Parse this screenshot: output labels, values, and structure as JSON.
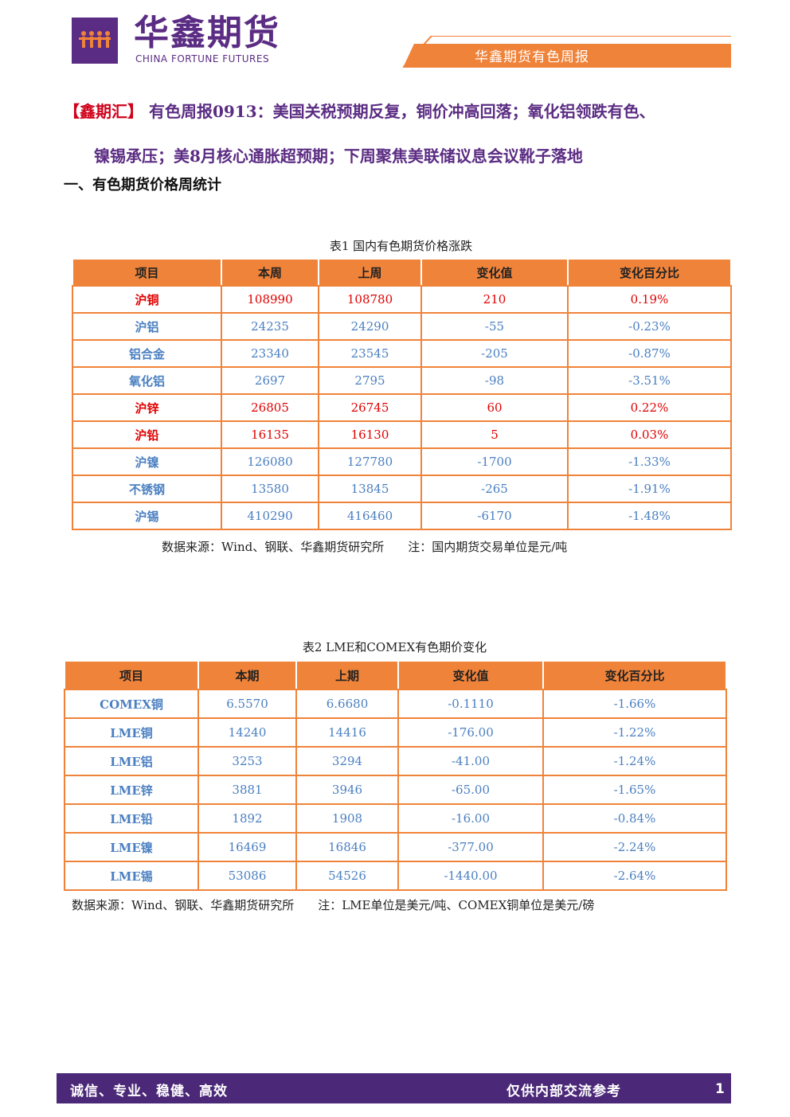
{
  "header": {
    "brand": "华鑫期货",
    "brand_en": "CHINA FORTUNE FUTURES",
    "report_tab": "华鑫期货有色周报",
    "accent_color": "#f0833a",
    "brand_color": "#5b2c83"
  },
  "title": {
    "lead": "【鑫期汇】",
    "line1": "有色周报0913：美国关税预期反复，铜价冲高回落；氧化铝领跌有色、",
    "line2": "镍锡承压；美8月核心通胀超预期；下周聚焦美联储议息会议靴子落地"
  },
  "section1": {
    "heading": "一、有色期货价格周统计"
  },
  "table1": {
    "caption": "表1 国内有色期货价格涨跌",
    "headers": [
      "项目",
      "本周",
      "上周",
      "变化值",
      "变化百分比"
    ],
    "rows": [
      [
        "沪铜",
        "108990",
        "108780",
        "210",
        "0.19%"
      ],
      [
        "沪铝",
        "24235",
        "24290",
        "-55",
        "-0.23%"
      ],
      [
        "铝合金",
        "23340",
        "23545",
        "-205",
        "-0.87%"
      ],
      [
        "氧化铝",
        "2697",
        "2795",
        "-98",
        "-3.51%"
      ],
      [
        "沪锌",
        "26805",
        "26745",
        "60",
        "0.22%"
      ],
      [
        "沪铅",
        "16135",
        "16130",
        "5",
        "0.03%"
      ],
      [
        "沪镍",
        "126080",
        "127780",
        "-1700",
        "-1.33%"
      ],
      [
        "不锈钢",
        "13580",
        "13845",
        "-265",
        "-1.91%"
      ],
      [
        "沪锡",
        "410290",
        "416460",
        "-6170",
        "-1.48%"
      ]
    ],
    "note": "数据来源：Wind、钢联、华鑫期货研究所　　注：国内期货交易单位是元/吨"
  },
  "table2": {
    "caption": "表2 LME和COMEX有色期价变化",
    "headers": [
      "项目",
      "本期",
      "上期",
      "变化值",
      "变化百分比"
    ],
    "rows": [
      [
        "COMEX铜",
        "6.5570",
        "6.6680",
        "-0.1110",
        "-1.66%"
      ],
      [
        "LME铜",
        "14240",
        "14416",
        "-176.00",
        "-1.22%"
      ],
      [
        "LME铝",
        "3253",
        "3294",
        "-41.00",
        "-1.24%"
      ],
      [
        "LME锌",
        "3881",
        "3946",
        "-65.00",
        "-1.65%"
      ],
      [
        "LME铅",
        "1892",
        "1908",
        "-16.00",
        "-0.84%"
      ],
      [
        "LME镍",
        "16469",
        "16846",
        "-377.00",
        "-2.24%"
      ],
      [
        "LME锡",
        "53086",
        "54526",
        "-1440.00",
        "-2.64%"
      ]
    ],
    "note": "数据来源：Wind、钢联、华鑫期货研究所　　注：LME单位是美元/吨、COMEX铜单位是美元/磅"
  },
  "footer": {
    "left": "诚信、专业、稳健、高效",
    "right": "仅供内部交流参考",
    "page": "1"
  }
}
